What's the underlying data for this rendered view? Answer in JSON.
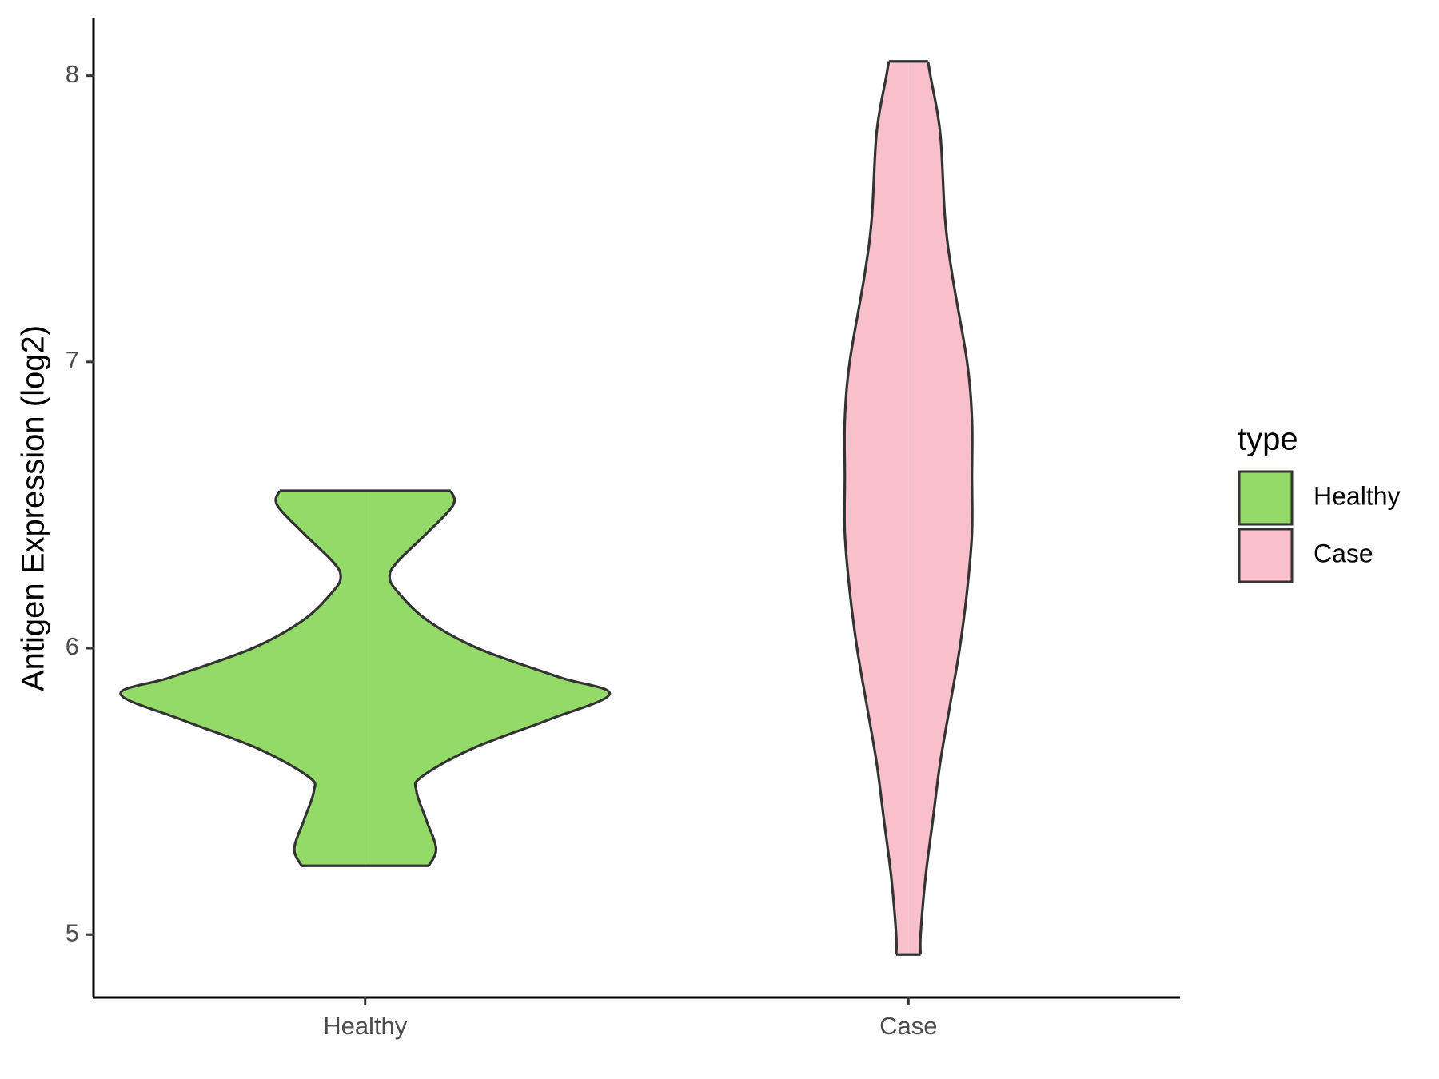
{
  "chart_data": {
    "type": "violin",
    "y_label": "Antigen Expression (log2)",
    "legend_title": "type",
    "legend_position": "right",
    "categories": [
      "Healthy",
      "Case"
    ],
    "ylim": [
      4.78,
      8.2
    ],
    "yticks": [
      5,
      6,
      7,
      8
    ],
    "grid": false,
    "series": [
      {
        "name": "Healthy",
        "color": "#93da69",
        "y": [
          6.55,
          6.5,
          6.4,
          6.3,
          6.25,
          6.2,
          6.1,
          6.0,
          5.9,
          5.84,
          5.75,
          5.65,
          5.55,
          5.5,
          5.4,
          5.3,
          5.24
        ],
        "widths": [
          0.35,
          0.36,
          0.25,
          0.13,
          0.1,
          0.13,
          0.25,
          0.46,
          0.79,
          1.0,
          0.75,
          0.44,
          0.23,
          0.21,
          0.25,
          0.29,
          0.26
        ]
      },
      {
        "name": "Case",
        "color": "#f7c0cb",
        "y": [
          8.05,
          8.0,
          7.8,
          7.5,
          7.3,
          7.0,
          6.8,
          6.6,
          6.4,
          6.2,
          6.0,
          5.8,
          5.6,
          5.4,
          5.2,
          5.0,
          4.93
        ],
        "widths": [
          0.08,
          0.09,
          0.13,
          0.15,
          0.18,
          0.24,
          0.26,
          0.26,
          0.26,
          0.24,
          0.21,
          0.17,
          0.13,
          0.1,
          0.07,
          0.05,
          0.05
        ]
      }
    ]
  }
}
